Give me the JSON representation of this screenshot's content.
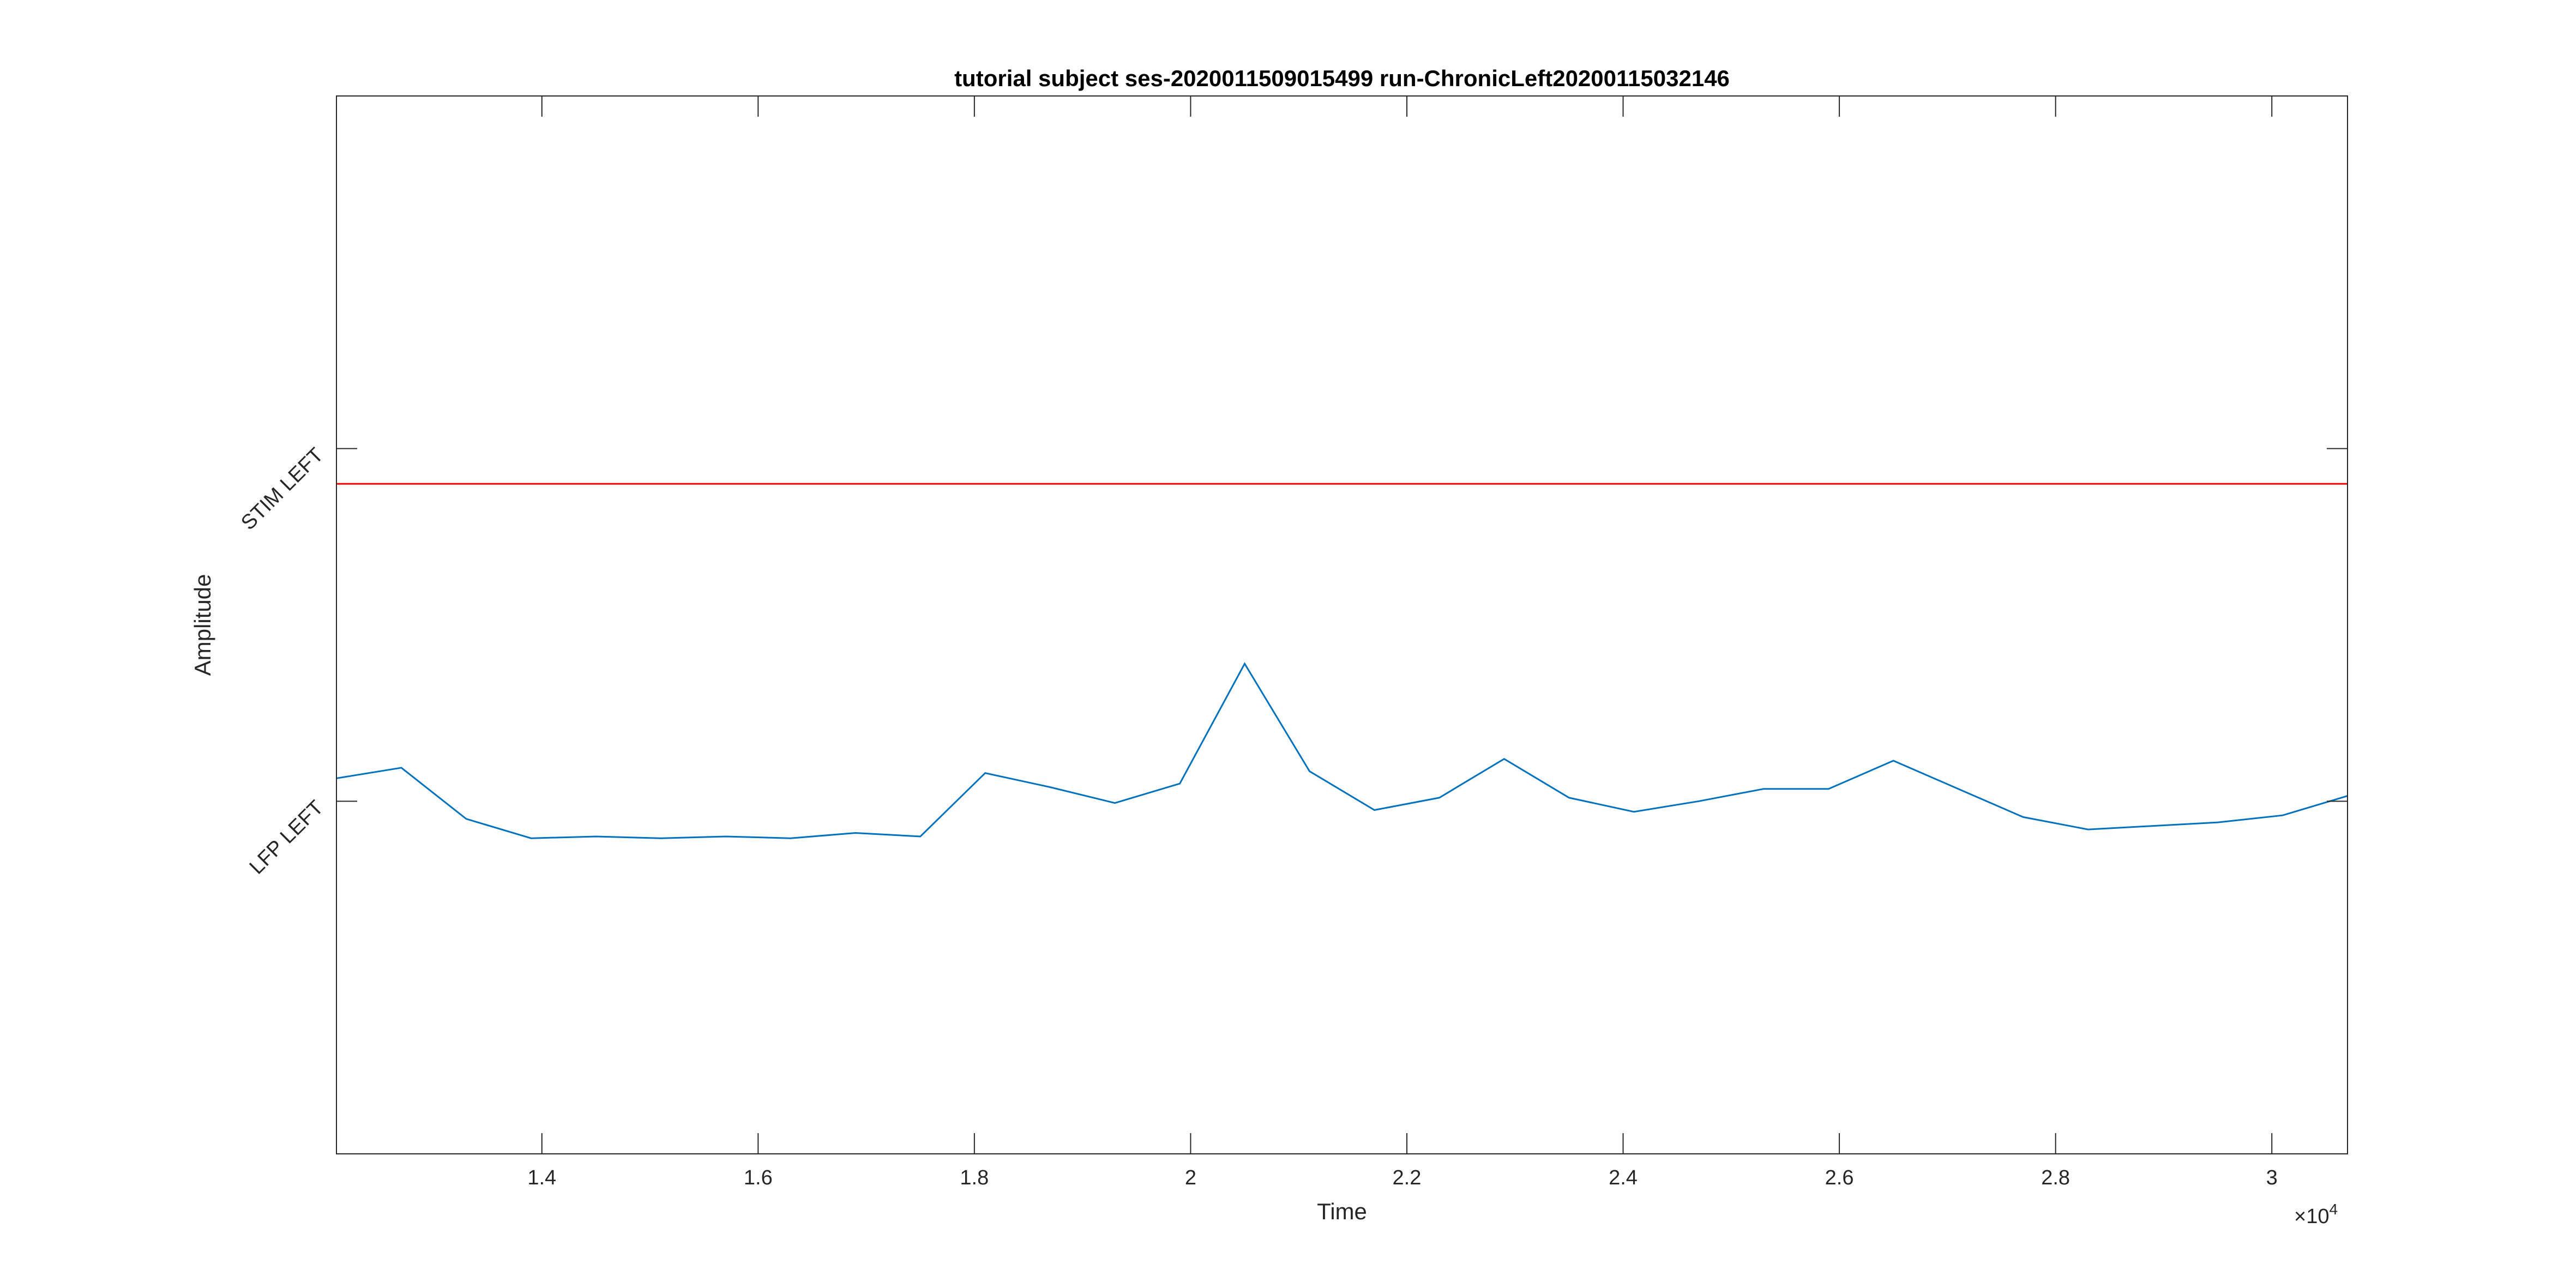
{
  "chart_data": {
    "type": "line",
    "title": "tutorial subject ses-2020011509015499 run-ChronicLeft20200115032146",
    "xlabel": "Time",
    "ylabel": "Amplitude",
    "x_exponent_label": "×10",
    "x_exponent_power": "4",
    "xlim": [
      12100,
      30700
    ],
    "x_ticks": [
      14000,
      16000,
      18000,
      20000,
      22000,
      24000,
      26000,
      28000,
      30000
    ],
    "x_tick_labels": [
      "1.4",
      "1.6",
      "1.8",
      "2",
      "2.2",
      "2.4",
      "2.6",
      "2.8",
      "3"
    ],
    "y_ticks": [
      {
        "label": "LFP LEFT",
        "position": 0
      },
      {
        "label": "STIM LEFT",
        "position": 1
      }
    ],
    "ylim": [
      -1,
      2
    ],
    "grid": false,
    "series": [
      {
        "name": "STIM LEFT",
        "color": "#ff0000",
        "x": [
          12100,
          30700
        ],
        "y": [
          0.9,
          0.9
        ]
      },
      {
        "name": "LFP LEFT",
        "color": "#0072bd",
        "x": [
          12100,
          12700,
          13300,
          13900,
          14500,
          15100,
          15700,
          16300,
          16900,
          17500,
          18100,
          18700,
          19300,
          19900,
          20500,
          21100,
          21700,
          22300,
          22900,
          23500,
          24100,
          24700,
          25300,
          25900,
          26500,
          27100,
          27700,
          28300,
          28900,
          29500,
          30100,
          30700
        ],
        "y": [
          0.065,
          0.095,
          -0.05,
          -0.105,
          -0.1,
          -0.105,
          -0.1,
          -0.105,
          -0.09,
          -0.1,
          0.08,
          0.04,
          -0.005,
          0.05,
          0.39,
          0.085,
          -0.025,
          0.01,
          0.12,
          0.01,
          -0.03,
          0.0,
          0.035,
          0.035,
          0.115,
          0.035,
          -0.045,
          -0.08,
          -0.07,
          -0.06,
          -0.04,
          0.015
        ]
      }
    ]
  }
}
